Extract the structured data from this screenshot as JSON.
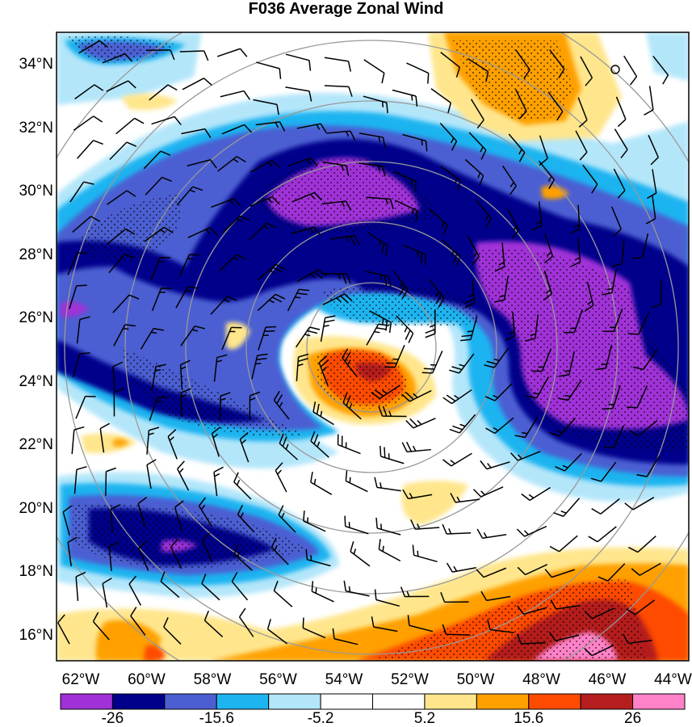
{
  "title": "F036 Average Zonal Wind",
  "latitude_labels": [
    "34°N",
    "32°N",
    "30°N",
    "28°N",
    "26°N",
    "24°N",
    "22°N",
    "20°N",
    "18°N",
    "16°N"
  ],
  "longitude_labels": [
    "62°W",
    "60°W",
    "58°W",
    "56°W",
    "54°W",
    "52°W",
    "50°W",
    "48°W",
    "46°W",
    "44°W"
  ],
  "colorbar": {
    "colors": [
      "#a030d8",
      "#00008b",
      "#4b5fd2",
      "#1eb4f0",
      "#b4e6fa",
      "#ffffff",
      "#ffffff",
      "#ffe68c",
      "#ffa000",
      "#ff4b00",
      "#b41e1e",
      "#ff82c8"
    ],
    "tick_labels": [
      "-26",
      "-15.6",
      "-5.2",
      "5.2",
      "15.6",
      "26"
    ]
  },
  "colors": {
    "map_gridlines": "#999999",
    "barbs": "#000000",
    "stipple": "#000000"
  }
}
